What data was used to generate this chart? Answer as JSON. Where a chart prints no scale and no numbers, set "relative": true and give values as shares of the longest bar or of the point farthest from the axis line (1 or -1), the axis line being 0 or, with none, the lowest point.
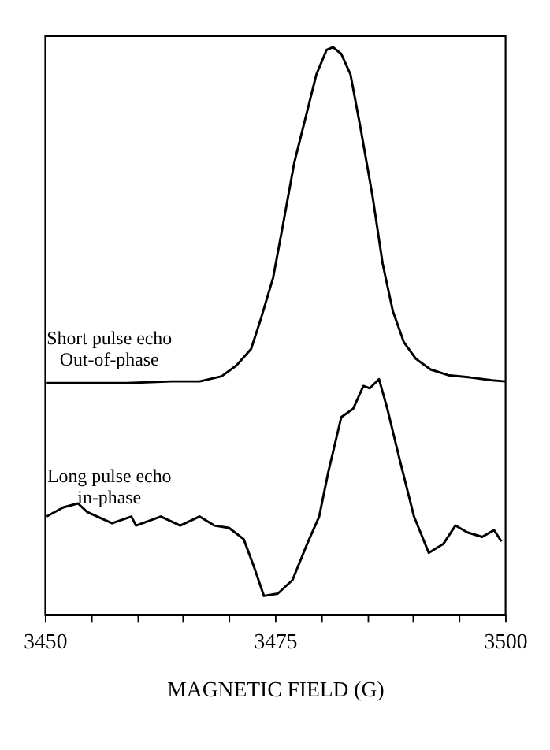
{
  "chart_data": {
    "type": "line",
    "relative": true,
    "xlabel": "MAGNETIC FIELD (G)",
    "xlim": [
      3450,
      3500
    ],
    "xticks": [
      3450,
      {
        "value": 3455,
        "label": null
      },
      {
        "value": 3460,
        "label": null
      },
      {
        "value": 3465,
        "label": null
      },
      {
        "value": 3470,
        "label": null
      },
      3475,
      {
        "value": 3480,
        "label": null
      },
      {
        "value": 3485,
        "label": null
      },
      {
        "value": 3490,
        "label": null
      },
      {
        "value": 3495,
        "label": null
      },
      3500
    ],
    "grid": false,
    "legend": false,
    "marker": "none",
    "line_style": "solid",
    "series": [
      {
        "name": "Short pulse echo\nOut-of-phase",
        "color": "#000000",
        "x": [
          3450.2,
          3454.1,
          3458.9,
          3463.7,
          3466.8,
          3469.2,
          3470.8,
          3472.4,
          3473.5,
          3474.8,
          3475.9,
          3477.1,
          3478.4,
          3479.5,
          3480.6,
          3481.3,
          3482.2,
          3483.2,
          3484.3,
          3485.6,
          3486.7,
          3487.8,
          3489.0,
          3490.3,
          3491.9,
          3493.8,
          3496.2,
          3498.6,
          3500.0
        ],
        "values": [
          0.408,
          0.408,
          0.408,
          0.411,
          0.411,
          0.42,
          0.439,
          0.468,
          0.523,
          0.594,
          0.69,
          0.797,
          0.881,
          0.952,
          0.995,
          1.0,
          0.988,
          0.952,
          0.857,
          0.737,
          0.618,
          0.535,
          0.48,
          0.451,
          0.432,
          0.422,
          0.418,
          0.413,
          0.411
        ]
      },
      {
        "name": "Long pulse echo\nin-phase",
        "color": "#000000",
        "x": [
          3450.2,
          3452.0,
          3453.6,
          3454.6,
          3457.3,
          3459.4,
          3459.9,
          3462.6,
          3464.7,
          3466.8,
          3468.4,
          3470.0,
          3471.6,
          3472.7,
          3473.8,
          3475.3,
          3476.9,
          3478.5,
          3479.8,
          3480.8,
          3482.2,
          3483.5,
          3484.6,
          3485.3,
          3486.3,
          3487.2,
          3488.5,
          3490.1,
          3491.7,
          3493.3,
          3494.6,
          3495.9,
          3497.5,
          3498.8,
          3499.6
        ],
        "values": [
          0.173,
          0.189,
          0.196,
          0.181,
          0.161,
          0.173,
          0.157,
          0.173,
          0.157,
          0.173,
          0.157,
          0.153,
          0.133,
          0.085,
          0.033,
          0.037,
          0.061,
          0.125,
          0.173,
          0.252,
          0.348,
          0.363,
          0.403,
          0.399,
          0.415,
          0.363,
          0.276,
          0.173,
          0.109,
          0.125,
          0.157,
          0.145,
          0.137,
          0.149,
          0.129
        ]
      }
    ]
  }
}
